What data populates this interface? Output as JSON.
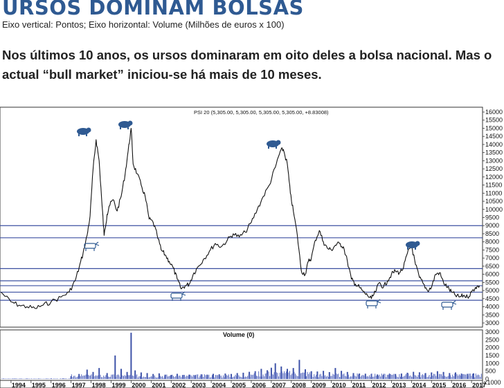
{
  "headline": "URSOS DOMINAM BOLSAS",
  "subtitle": "Eixo vertical: Pontos; Eixo horizontal: Volume (Milhões de euros x 100)",
  "lead": "Nos últimos 10 anos, os ursos dominaram em oito deles a bolsa nacional. Mas o actual “bull market” iniciou-se há mais de 10 meses.",
  "chart_data": [
    {
      "type": "line",
      "title": "PSI 20 (5,305.00, 5,305.00, 5,305.00, 5,305.00, +8.83008)",
      "ylim": [
        3000,
        16000
      ],
      "y_ticks": [
        "3000",
        "3500",
        "4000",
        "4500",
        "5000",
        "5500",
        "6000",
        "6500",
        "7000",
        "7500",
        "8000",
        "8500",
        "9000",
        "9500",
        "10000",
        "10500",
        "11000",
        "11500",
        "12000",
        "12500",
        "13000",
        "13500",
        "14000",
        "14500",
        "15000",
        "15500",
        "16000"
      ],
      "x_ticks": [
        "1994",
        "1995",
        "1996",
        "1997",
        "1998",
        "1999",
        "2000",
        "2001",
        "2002",
        "2003",
        "2004",
        "2005",
        "2006",
        "2007",
        "2008",
        "2009",
        "2010",
        "2011",
        "2012",
        "2013",
        "2014",
        "2015",
        "2016",
        "2017"
      ],
      "x": [
        1993.5,
        1994.0,
        1994.4,
        1994.8,
        1995.2,
        1995.6,
        1996.0,
        1996.5,
        1996.9,
        1997.2,
        1997.4,
        1997.6,
        1997.8,
        1997.95,
        1998.1,
        1998.25,
        1998.4,
        1998.55,
        1998.65,
        1998.8,
        1998.9,
        1999.1,
        1999.3,
        1999.5,
        1999.7,
        1999.85,
        2000.0,
        2000.1,
        2000.3,
        2000.5,
        2000.7,
        2000.9,
        2001.1,
        2001.3,
        2001.5,
        2001.7,
        2001.9,
        2002.1,
        2002.3,
        2002.5,
        2002.7,
        2002.9,
        2003.1,
        2003.3,
        2003.6,
        2003.9,
        2004.2,
        2004.5,
        2004.8,
        2005.1,
        2005.4,
        2005.7,
        2006.0,
        2006.3,
        2006.6,
        2006.9,
        2007.2,
        2007.45,
        2007.6,
        2007.8,
        2007.95,
        2008.1,
        2008.3,
        2008.5,
        2008.7,
        2008.85,
        2009.0,
        2009.2,
        2009.4,
        2009.6,
        2009.8,
        2010.0,
        2010.2,
        2010.4,
        2010.6,
        2010.8,
        2011.0,
        2011.2,
        2011.4,
        2011.6,
        2011.8,
        2012.0,
        2012.2,
        2012.4,
        2012.6,
        2012.8,
        2013.0,
        2013.2,
        2013.4,
        2013.6,
        2013.8,
        2014.0,
        2014.2,
        2014.4,
        2014.6,
        2014.8,
        2015.0,
        2015.2,
        2015.4,
        2015.6,
        2015.8,
        2016.0,
        2016.2,
        2016.4,
        2016.6,
        2016.8,
        2017.0,
        2017.2,
        2017.4
      ],
      "y": [
        4900,
        4300,
        4100,
        4000,
        3900,
        4100,
        4300,
        4600,
        4900,
        5600,
        6400,
        7300,
        8400,
        9600,
        12500,
        14300,
        13000,
        10200,
        8400,
        9700,
        10200,
        10600,
        9900,
        10800,
        12200,
        13600,
        15000,
        12800,
        12200,
        11500,
        10800,
        9400,
        9200,
        8400,
        7500,
        7200,
        6800,
        6400,
        5700,
        5100,
        5300,
        5400,
        6000,
        6400,
        6900,
        7400,
        7900,
        7700,
        8100,
        8500,
        8300,
        8600,
        9200,
        10000,
        10800,
        11500,
        12600,
        13600,
        13700,
        12800,
        11000,
        9900,
        8400,
        6200,
        6000,
        6800,
        7000,
        8100,
        8700,
        8000,
        7600,
        7500,
        7800,
        7900,
        7700,
        6800,
        5700,
        5400,
        5200,
        4900,
        4700,
        4500,
        4900,
        5500,
        5200,
        5600,
        6000,
        6200,
        6100,
        6400,
        7300,
        7800,
        6600,
        5800,
        5400,
        5000,
        5200,
        6000,
        6100,
        5500,
        5200,
        4900,
        4700,
        4600,
        4700,
        4600,
        4900,
        5200,
        5300
      ]
    },
    {
      "type": "bar",
      "title": "Volume (0)",
      "unit": "x1000",
      "ylim": [
        0,
        3000
      ],
      "y_ticks": [
        "0",
        "500",
        "1000",
        "1500",
        "2000",
        "2500",
        "3000"
      ],
      "x": [
        1993.6,
        1994.2,
        1994.8,
        1995.4,
        1996.0,
        1996.6,
        1997.0,
        1997.4,
        1997.8,
        1998.1,
        1998.4,
        1998.8,
        1999.2,
        1999.5,
        1999.8,
        2000.0,
        2000.2,
        2000.5,
        2000.8,
        2001.1,
        2001.4,
        2001.7,
        2002.0,
        2002.3,
        2002.6,
        2002.9,
        2003.2,
        2003.5,
        2003.8,
        2004.1,
        2004.4,
        2004.7,
        2005.0,
        2005.3,
        2005.6,
        2005.9,
        2006.2,
        2006.5,
        2006.8,
        2007.0,
        2007.2,
        2007.5,
        2007.8,
        2008.1,
        2008.4,
        2008.7,
        2009.0,
        2009.3,
        2009.6,
        2009.9,
        2010.2,
        2010.5,
        2010.8,
        2011.1,
        2011.4,
        2011.7,
        2012.0,
        2012.3,
        2012.6,
        2012.9,
        2013.2,
        2013.5,
        2013.8,
        2014.1,
        2014.4,
        2014.7,
        2015.0,
        2015.3,
        2015.6,
        2015.9,
        2016.2,
        2016.5,
        2016.8,
        2017.1
      ],
      "values": [
        20,
        25,
        20,
        25,
        30,
        40,
        180,
        320,
        600,
        450,
        700,
        380,
        1500,
        650,
        450,
        2950,
        550,
        420,
        380,
        320,
        360,
        280,
        260,
        330,
        260,
        280,
        250,
        300,
        280,
        330,
        300,
        350,
        320,
        380,
        400,
        460,
        500,
        650,
        560,
        720,
        1000,
        800,
        650,
        700,
        1220,
        620,
        500,
        480,
        520,
        440,
        700,
        520,
        450,
        380,
        350,
        340,
        320,
        290,
        280,
        320,
        320,
        350,
        400,
        460,
        430,
        380,
        420,
        500,
        450,
        380,
        420,
        350,
        330,
        360
      ]
    }
  ]
}
